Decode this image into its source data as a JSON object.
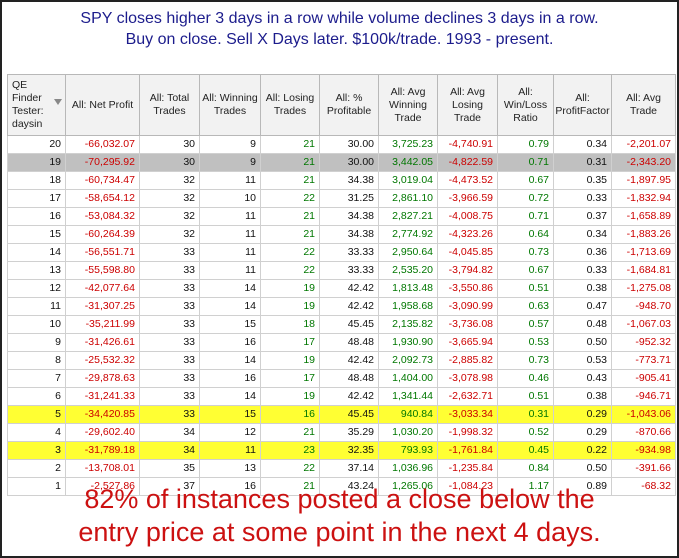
{
  "title": {
    "line1": "SPY closes higher 3 days in a row while volume declines 3 days in a row.",
    "line2": "Buy on close. Sell X Days later. $100k/trade. 1993 - present."
  },
  "headers": [
    "QE Finder Tester: daysin",
    "All: Net Profit",
    "All: Total Trades",
    "All: Winning Trades",
    "All: Losing Trades",
    "All: % Profitable",
    "All: Avg Winning Trade",
    "All: Avg Losing Trade",
    "All: Win/Loss Ratio",
    "All: ProfitFactor",
    "All: Avg Trade"
  ],
  "rows": [
    {
      "days": "20",
      "net": "-66,032.07",
      "total": "30",
      "win": "9",
      "lose": "21",
      "pct": "30.00",
      "avgwin": "3,725.23",
      "avglose": "-4,740.91",
      "wl": "0.79",
      "pf": "0.34",
      "avg": "-2,201.07",
      "style": ""
    },
    {
      "days": "19",
      "net": "-70,295.92",
      "total": "30",
      "win": "9",
      "lose": "21",
      "pct": "30.00",
      "avgwin": "3,442.05",
      "avglose": "-4,822.59",
      "wl": "0.71",
      "pf": "0.31",
      "avg": "-2,343.20",
      "style": "sel"
    },
    {
      "days": "18",
      "net": "-60,734.47",
      "total": "32",
      "win": "11",
      "lose": "21",
      "pct": "34.38",
      "avgwin": "3,019.04",
      "avglose": "-4,473.52",
      "wl": "0.67",
      "pf": "0.35",
      "avg": "-1,897.95",
      "style": ""
    },
    {
      "days": "17",
      "net": "-58,654.12",
      "total": "32",
      "win": "10",
      "lose": "22",
      "pct": "31.25",
      "avgwin": "2,861.10",
      "avglose": "-3,966.59",
      "wl": "0.72",
      "pf": "0.33",
      "avg": "-1,832.94",
      "style": ""
    },
    {
      "days": "16",
      "net": "-53,084.32",
      "total": "32",
      "win": "11",
      "lose": "21",
      "pct": "34.38",
      "avgwin": "2,827.21",
      "avglose": "-4,008.75",
      "wl": "0.71",
      "pf": "0.37",
      "avg": "-1,658.89",
      "style": ""
    },
    {
      "days": "15",
      "net": "-60,264.39",
      "total": "32",
      "win": "11",
      "lose": "21",
      "pct": "34.38",
      "avgwin": "2,774.92",
      "avglose": "-4,323.26",
      "wl": "0.64",
      "pf": "0.34",
      "avg": "-1,883.26",
      "style": ""
    },
    {
      "days": "14",
      "net": "-56,551.71",
      "total": "33",
      "win": "11",
      "lose": "22",
      "pct": "33.33",
      "avgwin": "2,950.64",
      "avglose": "-4,045.85",
      "wl": "0.73",
      "pf": "0.36",
      "avg": "-1,713.69",
      "style": ""
    },
    {
      "days": "13",
      "net": "-55,598.80",
      "total": "33",
      "win": "11",
      "lose": "22",
      "pct": "33.33",
      "avgwin": "2,535.20",
      "avglose": "-3,794.82",
      "wl": "0.67",
      "pf": "0.33",
      "avg": "-1,684.81",
      "style": ""
    },
    {
      "days": "12",
      "net": "-42,077.64",
      "total": "33",
      "win": "14",
      "lose": "19",
      "pct": "42.42",
      "avgwin": "1,813.48",
      "avglose": "-3,550.86",
      "wl": "0.51",
      "pf": "0.38",
      "avg": "-1,275.08",
      "style": ""
    },
    {
      "days": "11",
      "net": "-31,307.25",
      "total": "33",
      "win": "14",
      "lose": "19",
      "pct": "42.42",
      "avgwin": "1,958.68",
      "avglose": "-3,090.99",
      "wl": "0.63",
      "pf": "0.47",
      "avg": "-948.70",
      "style": ""
    },
    {
      "days": "10",
      "net": "-35,211.99",
      "total": "33",
      "win": "15",
      "lose": "18",
      "pct": "45.45",
      "avgwin": "2,135.82",
      "avglose": "-3,736.08",
      "wl": "0.57",
      "pf": "0.48",
      "avg": "-1,067.03",
      "style": ""
    },
    {
      "days": "9",
      "net": "-31,426.61",
      "total": "33",
      "win": "16",
      "lose": "17",
      "pct": "48.48",
      "avgwin": "1,930.90",
      "avglose": "-3,665.94",
      "wl": "0.53",
      "pf": "0.50",
      "avg": "-952.32",
      "style": ""
    },
    {
      "days": "8",
      "net": "-25,532.32",
      "total": "33",
      "win": "14",
      "lose": "19",
      "pct": "42.42",
      "avgwin": "2,092.73",
      "avglose": "-2,885.82",
      "wl": "0.73",
      "pf": "0.53",
      "avg": "-773.71",
      "style": ""
    },
    {
      "days": "7",
      "net": "-29,878.63",
      "total": "33",
      "win": "16",
      "lose": "17",
      "pct": "48.48",
      "avgwin": "1,404.00",
      "avglose": "-3,078.98",
      "wl": "0.46",
      "pf": "0.43",
      "avg": "-905.41",
      "style": ""
    },
    {
      "days": "6",
      "net": "-31,241.33",
      "total": "33",
      "win": "14",
      "lose": "19",
      "pct": "42.42",
      "avgwin": "1,341.44",
      "avglose": "-2,632.71",
      "wl": "0.51",
      "pf": "0.38",
      "avg": "-946.71",
      "style": ""
    },
    {
      "days": "5",
      "net": "-34,420.85",
      "total": "33",
      "win": "15",
      "lose": "16",
      "pct": "45.45",
      "avgwin": "940.84",
      "avglose": "-3,033.34",
      "wl": "0.31",
      "pf": "0.29",
      "avg": "-1,043.06",
      "style": "hl"
    },
    {
      "days": "4",
      "net": "-29,602.40",
      "total": "34",
      "win": "12",
      "lose": "21",
      "pct": "35.29",
      "avgwin": "1,030.20",
      "avglose": "-1,998.32",
      "wl": "0.52",
      "pf": "0.29",
      "avg": "-870.66",
      "style": ""
    },
    {
      "days": "3",
      "net": "-31,789.18",
      "total": "34",
      "win": "11",
      "lose": "23",
      "pct": "32.35",
      "avgwin": "793.93",
      "avglose": "-1,761.84",
      "wl": "0.45",
      "pf": "0.22",
      "avg": "-934.98",
      "style": "hl"
    },
    {
      "days": "2",
      "net": "-13,708.01",
      "total": "35",
      "win": "13",
      "lose": "22",
      "pct": "37.14",
      "avgwin": "1,036.96",
      "avglose": "-1,235.84",
      "wl": "0.84",
      "pf": "0.50",
      "avg": "-391.66",
      "style": ""
    },
    {
      "days": "1",
      "net": "-2,527.86",
      "total": "37",
      "win": "16",
      "lose": "21",
      "pct": "43.24",
      "avgwin": "1,265.06",
      "avglose": "-1,084.23",
      "wl": "1.17",
      "pf": "0.89",
      "avg": "-68.32",
      "style": ""
    }
  ],
  "footer": {
    "line1": "82% of instances posted a close below the",
    "line2": "entry price at some point in the next 4 days."
  },
  "colors": {
    "title": "#1c1c8c",
    "negative": "#cc0000",
    "positive": "#007700",
    "highlight": "#ffff33",
    "selected": "#c0c0c0",
    "footer": "#cc1111"
  },
  "icons": {
    "filter": "filter-dropdown-icon"
  }
}
